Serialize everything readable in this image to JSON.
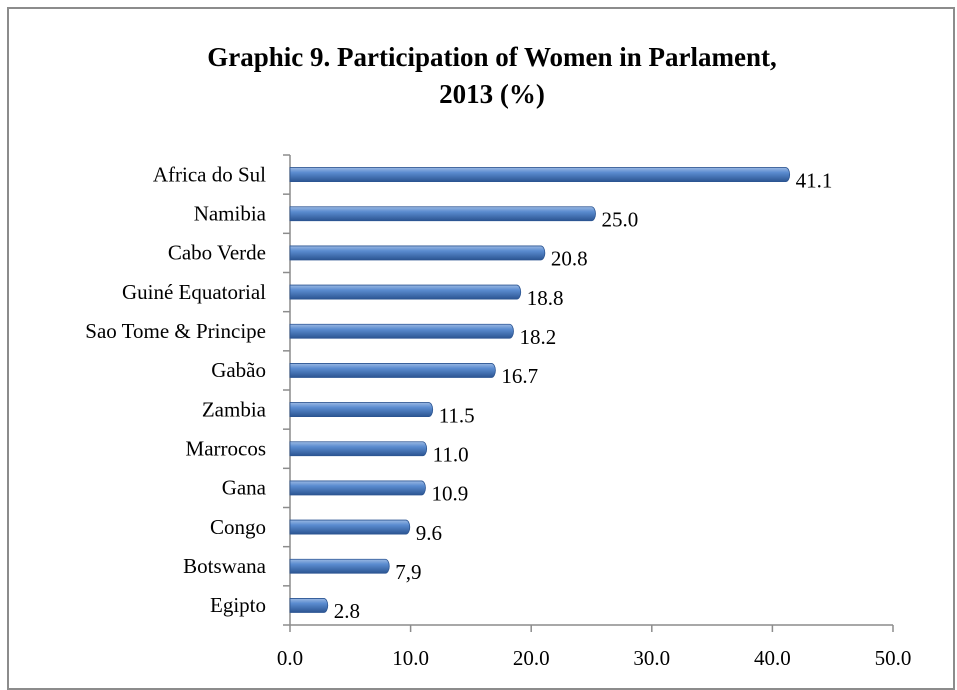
{
  "chart_data": {
    "type": "bar",
    "orientation": "horizontal",
    "title": [
      "Graphic 9. Participation of Women in Parlament,",
      "2013 (%)"
    ],
    "categories": [
      "Africa do Sul",
      "Namibia",
      "Cabo Verde",
      "Guiné Equatorial",
      "Sao Tome & Principe",
      "Gabão",
      "Zambia",
      "Marrocos",
      "Gana",
      "Congo",
      "Botswana",
      "Egipto"
    ],
    "values": [
      41.1,
      25.0,
      20.8,
      18.8,
      18.2,
      16.7,
      11.5,
      11.0,
      10.9,
      9.6,
      7.9,
      2.8
    ],
    "value_labels": [
      "41.1",
      "25.0",
      "20.8",
      "18.8",
      "18.2",
      "16.7",
      "11.5",
      "11.0",
      "10.9",
      "9.6",
      "7,9",
      "2.8"
    ],
    "color": "#4f81bd",
    "xlim": [
      0,
      50
    ],
    "xticks": [
      {
        "value": 0,
        "label": "0.0"
      },
      {
        "value": 10,
        "label": "10.0"
      },
      {
        "value": 20,
        "label": "20.0"
      },
      {
        "value": 30,
        "label": "30.0"
      },
      {
        "value": 40,
        "label": "40.0"
      },
      {
        "value": 50,
        "label": "50.0"
      }
    ]
  }
}
